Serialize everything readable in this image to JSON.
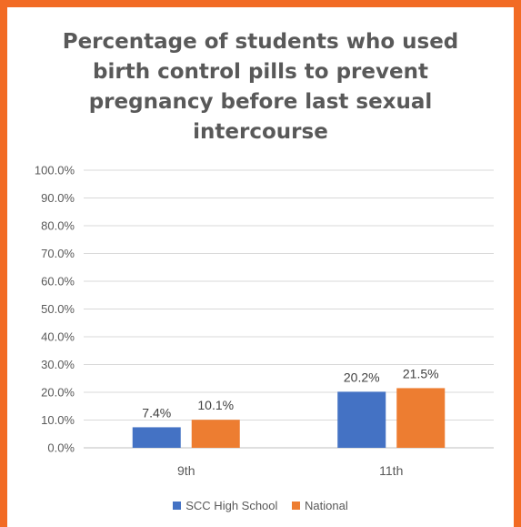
{
  "chart_data": {
    "type": "bar",
    "title_lines": [
      "Percentage of students who used",
      "birth control pills to prevent",
      "pregnancy before last sexual",
      "intercourse"
    ],
    "categories": [
      "9th",
      "11th"
    ],
    "series": [
      {
        "name": "SCC High School",
        "values": [
          7.4,
          20.2
        ],
        "labels": [
          "7.4%",
          "20.2%"
        ],
        "color": "#4472c4"
      },
      {
        "name": "National",
        "values": [
          10.1,
          21.5
        ],
        "labels": [
          "10.1%",
          "21.5%"
        ],
        "color": "#ed7d31"
      }
    ],
    "ylim": [
      0,
      100
    ],
    "yticks": [
      0,
      10,
      20,
      30,
      40,
      50,
      60,
      70,
      80,
      90,
      100
    ],
    "ytick_labels": [
      "0.0%",
      "10.0%",
      "20.0%",
      "30.0%",
      "40.0%",
      "50.0%",
      "60.0%",
      "70.0%",
      "80.0%",
      "90.0%",
      "100.0%"
    ],
    "xlabel": "",
    "ylabel": "",
    "grid": true,
    "legend_position": "bottom"
  }
}
